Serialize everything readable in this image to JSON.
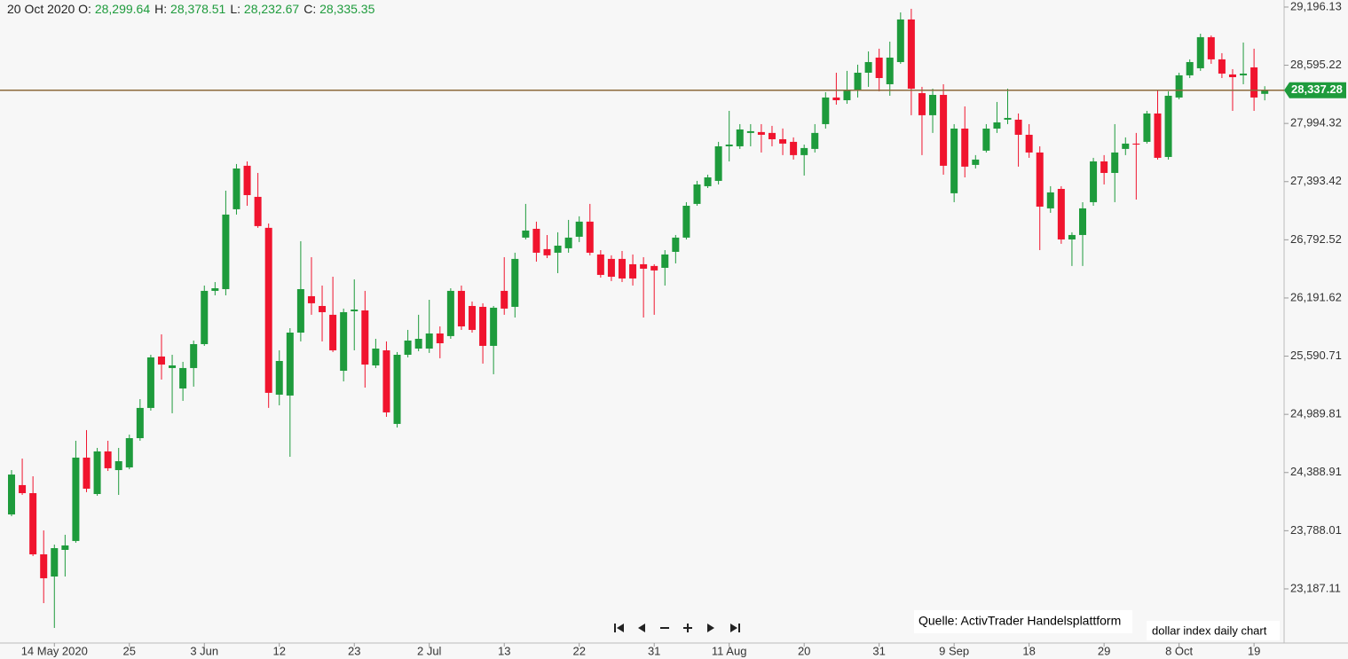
{
  "chart_data": {
    "type": "candlestick",
    "header": {
      "date": "20 Oct 2020",
      "items": [
        {
          "label": "O:",
          "value": "28,299.64"
        },
        {
          "label": "H:",
          "value": "28,378.51"
        },
        {
          "label": "L:",
          "value": "28,232.67"
        },
        {
          "label": "C:",
          "value": "28,335.35"
        }
      ]
    },
    "categories": [
      null,
      null,
      null,
      null,
      "14 May 2020",
      null,
      null,
      null,
      null,
      null,
      null,
      "25",
      null,
      null,
      null,
      null,
      null,
      null,
      "3 Jun",
      null,
      null,
      null,
      null,
      null,
      null,
      "12",
      null,
      null,
      null,
      null,
      null,
      null,
      "23",
      null,
      null,
      null,
      null,
      null,
      null,
      "2 Jul",
      null,
      null,
      null,
      null,
      null,
      null,
      "13",
      null,
      null,
      null,
      null,
      null,
      null,
      "22",
      null,
      null,
      null,
      null,
      null,
      null,
      "31",
      null,
      null,
      null,
      null,
      null,
      null,
      "11 Aug",
      null,
      null,
      null,
      null,
      null,
      null,
      "20",
      null,
      null,
      null,
      null,
      null,
      null,
      "31",
      null,
      null,
      null,
      null,
      null,
      null,
      "9 Sep",
      null,
      null,
      null,
      null,
      null,
      null,
      "18",
      null,
      null,
      null,
      null,
      null,
      null,
      "29",
      null,
      null,
      null,
      null,
      null,
      null,
      "8 Oct",
      null,
      null,
      null,
      null,
      null,
      null,
      "19",
      null
    ],
    "open": [
      23956,
      24259,
      24176,
      23544,
      23315,
      23590,
      23682,
      24543,
      24167,
      24607,
      24414,
      24442,
      24744,
      25056,
      25587,
      25468,
      25257,
      25468,
      25715,
      26265,
      26283,
      27108,
      27557,
      27236,
      26916,
      25193,
      25184,
      25834,
      26210,
      26109,
      26018,
      25440,
      26054,
      26063,
      25495,
      25651,
      24891,
      25605,
      25669,
      25669,
      25825,
      25798,
      26265,
      26109,
      26100,
      25697,
      26265,
      26100,
      26815,
      26906,
      26696,
      26659,
      26705,
      26824,
      26980,
      26641,
      26595,
      26595,
      26540,
      26540,
      26522,
      26503,
      26668,
      26815,
      27163,
      27346,
      27401,
      27758,
      27758,
      27896,
      27905,
      27896,
      27831,
      27804,
      27667,
      27731,
      27987,
      28262,
      28234,
      28335,
      28518,
      28674,
      28399,
      28628,
      29068,
      28307,
      28079,
      28289,
      27273,
      27941,
      27566,
      27713,
      27941,
      28033,
      28033,
      27877,
      27694,
      27117,
      27318,
      26796,
      26842,
      27181,
      27602,
      27483,
      27731,
      27786,
      27804,
      28097,
      27648,
      28262,
      28491,
      28564,
      28885,
      28656,
      28500,
      28491,
      28573,
      28299.64
    ],
    "high": [
      24414,
      24533,
      24350,
      23791,
      23645,
      23746,
      24717,
      24827,
      24643,
      24717,
      24643,
      24781,
      25147,
      25605,
      25816,
      25605,
      25532,
      25752,
      26320,
      26356,
      27300,
      27575,
      27602,
      27483,
      26961,
      25651,
      25880,
      26778,
      26613,
      26320,
      26411,
      26082,
      26384,
      26265,
      25770,
      25743,
      25633,
      25862,
      26018,
      26173,
      25898,
      26292,
      26320,
      26155,
      26137,
      26109,
      26613,
      26659,
      27163,
      26980,
      26842,
      26870,
      26998,
      27035,
      27163,
      26686,
      26632,
      26677,
      26641,
      26613,
      26540,
      26686,
      26842,
      27181,
      27401,
      27465,
      27804,
      28124,
      27987,
      27987,
      27987,
      27969,
      27942,
      27850,
      27776,
      27987,
      28317,
      28518,
      28537,
      28601,
      28738,
      28766,
      28839,
      29141,
      29178,
      28372,
      28353,
      28399,
      27987,
      28170,
      27667,
      27987,
      28216,
      28353,
      28097,
      27987,
      27758,
      27346,
      27346,
      26870,
      27181,
      27639,
      27667,
      27987,
      27850,
      27896,
      28124,
      28335,
      28326,
      28518,
      28656,
      28921,
      28903,
      28720,
      28555,
      28830,
      28766,
      28378.51
    ],
    "low": [
      23938,
      24158,
      23526,
      23040,
      22784,
      23315,
      23664,
      24186,
      24149,
      24405,
      24158,
      24423,
      24717,
      25028,
      25349,
      25001,
      25129,
      25276,
      25697,
      26219,
      26219,
      27053,
      27144,
      26916,
      25056,
      25083,
      24552,
      25743,
      26018,
      25743,
      25633,
      25330,
      25651,
      25266,
      25468,
      24964,
      24854,
      25578,
      25642,
      25624,
      25569,
      25770,
      25862,
      25834,
      25514,
      25404,
      26018,
      25990,
      26796,
      26567,
      26604,
      26448,
      26659,
      26769,
      26632,
      26402,
      26366,
      26356,
      26320,
      25990,
      26018,
      26320,
      26549,
      26796,
      27144,
      27327,
      27364,
      27602,
      27731,
      27758,
      27694,
      27758,
      27667,
      27621,
      27456,
      27694,
      27941,
      28188,
      28197,
      28262,
      28372,
      28326,
      28280,
      28610,
      28079,
      27667,
      27896,
      27465,
      27181,
      27437,
      27529,
      27694,
      27896,
      27987,
      27548,
      27639,
      26686,
      27071,
      26751,
      26522,
      26522,
      27144,
      27364,
      27181,
      27667,
      27208,
      27786,
      27621,
      27621,
      28243,
      28463,
      28537,
      28610,
      28463,
      28124,
      28399,
      28124,
      28232.67
    ],
    "close": [
      24368,
      24176,
      23544,
      23297,
      23608,
      23636,
      24543,
      24222,
      24607,
      24433,
      24506,
      24744,
      25056,
      25578,
      25504,
      25495,
      25468,
      25715,
      26265,
      26292,
      27053,
      27529,
      27254,
      26934,
      25212,
      25541,
      25834,
      26283,
      26137,
      26045,
      25651,
      26045,
      26072,
      25504,
      25669,
      25010,
      25605,
      25752,
      25770,
      25825,
      25724,
      26265,
      25898,
      25862,
      25697,
      26091,
      26082,
      26595,
      26888,
      26659,
      26632,
      26732,
      26815,
      26980,
      26659,
      26430,
      26411,
      26393,
      26393,
      26494,
      26476,
      26641,
      26815,
      27144,
      27364,
      27437,
      27758,
      27776,
      27932,
      27914,
      27877,
      27831,
      27786,
      27667,
      27740,
      27896,
      28262,
      28234,
      28335,
      28518,
      28628,
      28463,
      28674,
      29068,
      28353,
      28079,
      28289,
      27557,
      27941,
      27548,
      27621,
      27941,
      28005,
      28051,
      27877,
      27694,
      27135,
      27282,
      26796,
      26842,
      27117,
      27602,
      27483,
      27694,
      27786,
      27776,
      28097,
      27639,
      28280,
      28491,
      28628,
      28885,
      28656,
      28509,
      28472,
      28509,
      28262,
      28335.35
    ],
    "up_color": "#1e9b3c",
    "down_color": "#f0142e",
    "ylim": [
      22628,
      29269
    ],
    "yticks": [
      {
        "value": 29196.13,
        "label": "29,196.13"
      },
      {
        "value": 28595.22,
        "label": "28,595.22"
      },
      {
        "value": 27994.32,
        "label": "27,994.32"
      },
      {
        "value": 27393.42,
        "label": "27,393.42"
      },
      {
        "value": 26792.52,
        "label": "26,792.52"
      },
      {
        "value": 26191.62,
        "label": "26,191.62"
      },
      {
        "value": 25590.71,
        "label": "25,590.71"
      },
      {
        "value": 24989.81,
        "label": "24,989.81"
      },
      {
        "value": 24388.91,
        "label": "24,388.91"
      },
      {
        "value": 23788.01,
        "label": "23,788.01"
      },
      {
        "value": 23187.11,
        "label": "23,187.11"
      }
    ],
    "last_price": {
      "value": 28337.28,
      "label": "28,337.28"
    },
    "source": "Quelle: ActivTrader Handelsplattform",
    "caption": "dollar index daily chart"
  }
}
